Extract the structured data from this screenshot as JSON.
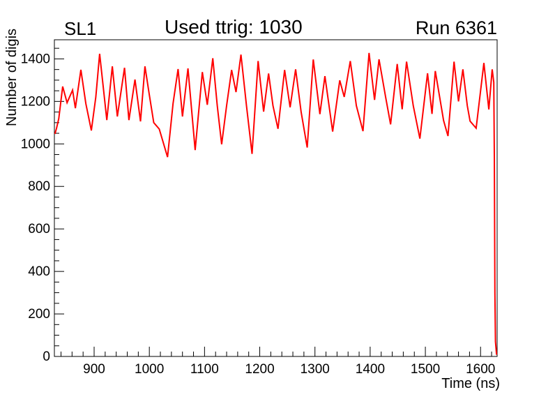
{
  "header": {
    "left": "SL1",
    "right": "Run 6361"
  },
  "chart_data": {
    "type": "line",
    "title": "Used ttrig: 1030",
    "grid": false,
    "legend": null,
    "frame_color": "#000000",
    "background_color": "#ffffff",
    "x_axis": {
      "title": "Time (ns)",
      "range": [
        828,
        1630
      ],
      "major_ticks": [
        900,
        1000,
        1100,
        1200,
        1300,
        1400,
        1500,
        1600
      ],
      "minor_tick_step": 20
    },
    "y_axis": {
      "title": "Number of digis",
      "range": [
        0,
        1490
      ],
      "major_ticks": [
        0,
        200,
        400,
        600,
        800,
        1000,
        1200,
        1400
      ],
      "minor_tick_step": 50
    },
    "series": [
      {
        "name": "number-of-digis-vs-time",
        "color": "#ff0000",
        "line_width": 2,
        "points": [
          [
            829,
            1047
          ],
          [
            832,
            1075
          ],
          [
            836,
            1119
          ],
          [
            843,
            1270
          ],
          [
            851,
            1194
          ],
          [
            861,
            1253
          ],
          [
            866,
            1168
          ],
          [
            876,
            1349
          ],
          [
            885,
            1190
          ],
          [
            895,
            1063
          ],
          [
            903,
            1220
          ],
          [
            910,
            1424
          ],
          [
            917,
            1255
          ],
          [
            923,
            1112
          ],
          [
            933,
            1365
          ],
          [
            942,
            1129
          ],
          [
            955,
            1358
          ],
          [
            963,
            1112
          ],
          [
            974,
            1303
          ],
          [
            984,
            1106
          ],
          [
            992,
            1365
          ],
          [
            1000,
            1230
          ],
          [
            1008,
            1100
          ],
          [
            1018,
            1070
          ],
          [
            1033,
            938
          ],
          [
            1043,
            1190
          ],
          [
            1052,
            1352
          ],
          [
            1060,
            1129
          ],
          [
            1070,
            1355
          ],
          [
            1083,
            971
          ],
          [
            1096,
            1338
          ],
          [
            1105,
            1184
          ],
          [
            1115,
            1403
          ],
          [
            1123,
            1180
          ],
          [
            1131,
            998
          ],
          [
            1140,
            1180
          ],
          [
            1149,
            1348
          ],
          [
            1157,
            1244
          ],
          [
            1166,
            1420
          ],
          [
            1176,
            1180
          ],
          [
            1186,
            953
          ],
          [
            1197,
            1390
          ],
          [
            1207,
            1152
          ],
          [
            1216,
            1331
          ],
          [
            1224,
            1180
          ],
          [
            1233,
            1071
          ],
          [
            1245,
            1348
          ],
          [
            1255,
            1172
          ],
          [
            1265,
            1351
          ],
          [
            1275,
            1150
          ],
          [
            1286,
            983
          ],
          [
            1297,
            1397
          ],
          [
            1309,
            1140
          ],
          [
            1318,
            1319
          ],
          [
            1332,
            1058
          ],
          [
            1345,
            1299
          ],
          [
            1353,
            1221
          ],
          [
            1364,
            1390
          ],
          [
            1375,
            1180
          ],
          [
            1387,
            1060
          ],
          [
            1398,
            1428
          ],
          [
            1408,
            1207
          ],
          [
            1416,
            1398
          ],
          [
            1428,
            1220
          ],
          [
            1437,
            1092
          ],
          [
            1449,
            1376
          ],
          [
            1458,
            1163
          ],
          [
            1466,
            1387
          ],
          [
            1478,
            1180
          ],
          [
            1490,
            1025
          ],
          [
            1504,
            1332
          ],
          [
            1512,
            1141
          ],
          [
            1518,
            1343
          ],
          [
            1533,
            1110
          ],
          [
            1541,
            1037
          ],
          [
            1552,
            1387
          ],
          [
            1560,
            1200
          ],
          [
            1568,
            1351
          ],
          [
            1576,
            1180
          ],
          [
            1581,
            1107
          ],
          [
            1592,
            1074
          ],
          [
            1606,
            1381
          ],
          [
            1615,
            1162
          ],
          [
            1621,
            1351
          ],
          [
            1624,
            1290
          ],
          [
            1625,
            940
          ],
          [
            1626,
            300
          ],
          [
            1627,
            70
          ],
          [
            1629,
            8
          ]
        ]
      }
    ]
  }
}
